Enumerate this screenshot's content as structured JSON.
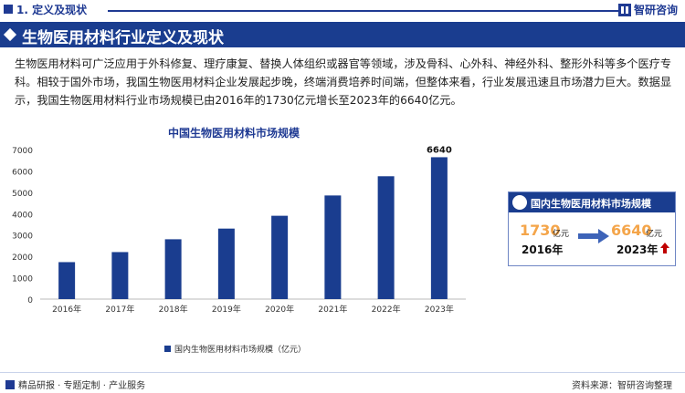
{
  "header": {
    "section_title": "1. 定义及现状",
    "logo_text": "智研咨询",
    "accent_color": "#1f3a93"
  },
  "banner": {
    "title": "生物医用材料行业定义及现状"
  },
  "paragraph": {
    "text": "生物医用材料可广泛应用于外科修复、理疗康复、替换人体组织或器官等领域，涉及骨科、心外科、神经外科、整形外科等多个医疗专科。相较于国外市场，我国生物医用材料企业发展起步晚，终端消费培养时间端，但整体来看，行业发展迅速且市场潜力巨大。数据显示，我国生物医用材料行业市场规模已由2016年的1730亿元增长至2023年的6640亿元。"
  },
  "chart_data": {
    "type": "bar",
    "title": "中国生物医用材料市场规模",
    "categories": [
      "2016年",
      "2017年",
      "2018年",
      "2019年",
      "2020年",
      "2021年",
      "2022年",
      "2023年"
    ],
    "series": [
      {
        "name": "国内生物医用材料市场规模（亿元）",
        "values": [
          1730,
          2200,
          2800,
          3300,
          3900,
          4850,
          5750,
          6640
        ]
      }
    ],
    "yticks": [
      "0",
      "1000",
      "2000",
      "3000",
      "4000",
      "5000",
      "6000",
      "7000"
    ],
    "ylim": [
      0,
      7000
    ],
    "data_label": "6640",
    "bar_color": "#1a3d8f",
    "grid": false,
    "legend": "bottom"
  },
  "card": {
    "title": "国内生物医用材料市场规模",
    "start_value": "1730",
    "start_unit": "亿元",
    "start_year": "2016年",
    "end_value": "6640",
    "end_unit": "亿元",
    "end_year": "2023年",
    "value_color": "#f4a54a",
    "up_color": "#c00000"
  },
  "footer": {
    "left_text": "精品研报 · 专题定制 · 产业服务",
    "right_text": "资料来源：智研咨询整理"
  }
}
